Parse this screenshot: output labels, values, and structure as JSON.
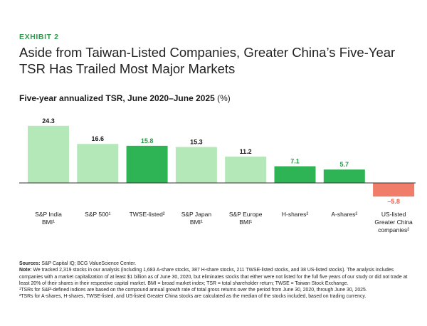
{
  "exhibit_label": "EXHIBIT 2",
  "headline": "Aside from Taiwan-Listed Companies, Greater China’s Five-Year TSR Has Trailed Most Major Markets",
  "subtitle": "Five-year annualized TSR, June 2020–June 2025",
  "subtitle_unit": "(%)",
  "colors": {
    "accent": "#2e9a4c",
    "bar_light": "#b5e8b9",
    "bar_dark": "#2fb455",
    "bar_negative": "#f07d6a",
    "negative_label": "#e8604c",
    "dark_label": "#2a9a49",
    "baseline": "#333333"
  },
  "chart_data": {
    "type": "bar",
    "title": "Five-year annualized TSR, June 2020–June 2025 (%)",
    "xlabel": "",
    "ylabel": "",
    "ylim": [
      -5.8,
      24.3
    ],
    "grid": false,
    "categories": [
      {
        "lines": [
          "S&P India",
          "BMI¹"
        ],
        "value": 24.3,
        "label": "24.3",
        "style": "light"
      },
      {
        "lines": [
          "S&P 500¹"
        ],
        "value": 16.6,
        "label": "16.6",
        "style": "light"
      },
      {
        "lines": [
          "TWSE-listed²"
        ],
        "value": 15.8,
        "label": "15.8",
        "style": "dark"
      },
      {
        "lines": [
          "S&P Japan",
          "BMI¹"
        ],
        "value": 15.3,
        "label": "15.3",
        "style": "light"
      },
      {
        "lines": [
          "S&P Europe",
          "BMI¹"
        ],
        "value": 11.2,
        "label": "11.2",
        "style": "light"
      },
      {
        "lines": [
          "H-shares²"
        ],
        "value": 7.1,
        "label": "7.1",
        "style": "dark"
      },
      {
        "lines": [
          "A-shares²"
        ],
        "value": 5.7,
        "label": "5.7",
        "style": "dark"
      },
      {
        "lines": [
          "US-listed",
          "Greater China",
          "companies²"
        ],
        "value": -5.8,
        "label": "–5.8",
        "style": "negative"
      }
    ]
  },
  "notes": {
    "sources_label": "Sources:",
    "sources_text": " S&P Capital IQ; BCG ValueScience Center.",
    "note_label": "Note:",
    "note_text": " We tracked 2,319 stocks in our analysis (including 1,683 A-share stocks, 387 H-share stocks, 211 TWSE-listed stocks, and 38 US-listed stocks). The analysis includes companies with a market capitalization of at least $1 billion as of June 30, 2020, but eliminates stocks that either were not listed for the full five years of our study or did not trade at least 20% of their shares in their respective capital market. BMI = broad market index; TSR = total shareholder return; TWSE = Taiwan Stock Exchange.",
    "footnote_1": "¹TSRs for S&P-defined indices are based on the compound annual growth rate of total gross returns over the period from June 30, 2020, through June 30, 2025.",
    "footnote_2": "²TSRs for A-shares, H-shares, TWSE-listed, and US-listed Greater China stocks are calculated as the median of the stocks included, based on trading currency."
  }
}
